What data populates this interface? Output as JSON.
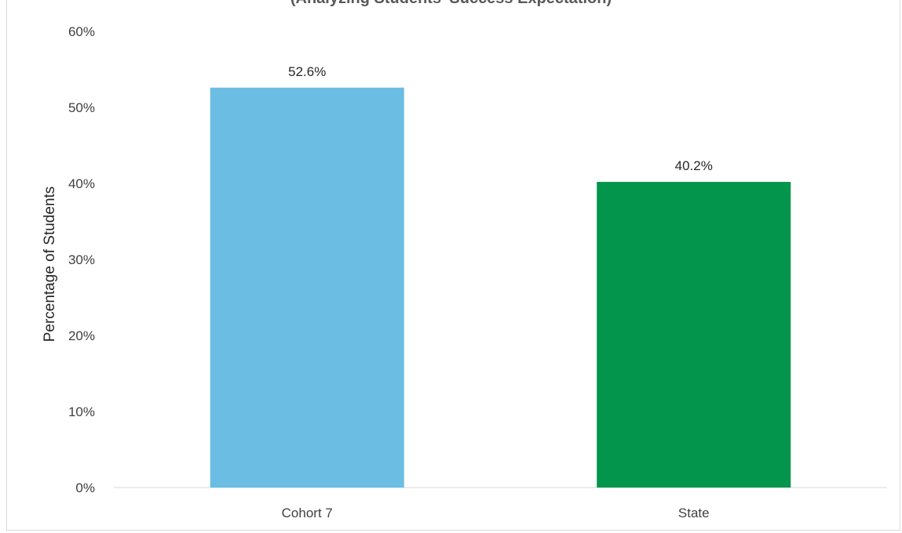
{
  "chart_data": {
    "type": "bar",
    "title": "(Analyzing Students' Success Expectation)",
    "xlabel": "",
    "ylabel": "Percentage of Students",
    "categories": [
      "Cohort 7",
      "State"
    ],
    "values": [
      52.6,
      40.2
    ],
    "value_labels": [
      "52.6%",
      "40.2%"
    ],
    "colors": [
      "#6CBDE3",
      "#02954B"
    ],
    "ylim": [
      0,
      60
    ],
    "yticks": [
      0,
      10,
      20,
      30,
      40,
      50,
      60
    ],
    "ytick_labels": [
      "0%",
      "10%",
      "20%",
      "30%",
      "40%",
      "50%",
      "60%"
    ],
    "grid": false,
    "legend": "none"
  }
}
